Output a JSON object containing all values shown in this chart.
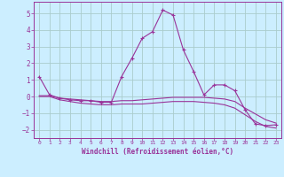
{
  "xlabel": "Windchill (Refroidissement éolien,°C)",
  "background_color": "#cceeff",
  "grid_color": "#aacccc",
  "line_color": "#993399",
  "xlim": [
    -0.5,
    23.5
  ],
  "ylim": [
    -2.5,
    5.7
  ],
  "yticks": [
    -2,
    -1,
    0,
    1,
    2,
    3,
    4,
    5
  ],
  "xticks": [
    0,
    1,
    2,
    3,
    4,
    5,
    6,
    7,
    8,
    9,
    10,
    11,
    12,
    13,
    14,
    15,
    16,
    17,
    18,
    19,
    20,
    21,
    22,
    23
  ],
  "series": [
    {
      "x": [
        0,
        1,
        2,
        3,
        4,
        5,
        6,
        7,
        8,
        9,
        10,
        11,
        12,
        13,
        14,
        15,
        16,
        17,
        18,
        19,
        20,
        21,
        22,
        23
      ],
      "y": [
        1.2,
        0.1,
        -0.1,
        -0.2,
        -0.25,
        -0.25,
        -0.35,
        -0.35,
        1.2,
        2.3,
        3.5,
        3.9,
        5.2,
        4.9,
        2.8,
        1.5,
        0.1,
        0.7,
        0.7,
        0.35,
        -0.8,
        -1.65,
        -1.75,
        -1.7
      ],
      "color": "#993399",
      "marker": "+"
    },
    {
      "x": [
        0,
        1,
        2,
        3,
        4,
        5,
        6,
        7,
        8,
        9,
        10,
        11,
        12,
        13,
        14,
        15,
        16,
        17,
        18,
        19,
        20,
        21,
        22,
        23
      ],
      "y": [
        0.05,
        0.05,
        -0.1,
        -0.15,
        -0.2,
        -0.25,
        -0.3,
        -0.3,
        -0.25,
        -0.25,
        -0.2,
        -0.15,
        -0.1,
        -0.05,
        -0.05,
        -0.05,
        -0.05,
        -0.1,
        -0.15,
        -0.3,
        -0.7,
        -1.05,
        -1.4,
        -1.6
      ],
      "color": "#993399",
      "marker": null
    },
    {
      "x": [
        0,
        1,
        2,
        3,
        4,
        5,
        6,
        7,
        8,
        9,
        10,
        11,
        12,
        13,
        14,
        15,
        16,
        17,
        18,
        19,
        20,
        21,
        22,
        23
      ],
      "y": [
        0.0,
        0.0,
        -0.2,
        -0.3,
        -0.4,
        -0.45,
        -0.5,
        -0.5,
        -0.45,
        -0.45,
        -0.45,
        -0.4,
        -0.35,
        -0.3,
        -0.3,
        -0.3,
        -0.35,
        -0.4,
        -0.5,
        -0.7,
        -1.1,
        -1.5,
        -1.8,
        -1.9
      ],
      "color": "#993399",
      "marker": null
    }
  ]
}
